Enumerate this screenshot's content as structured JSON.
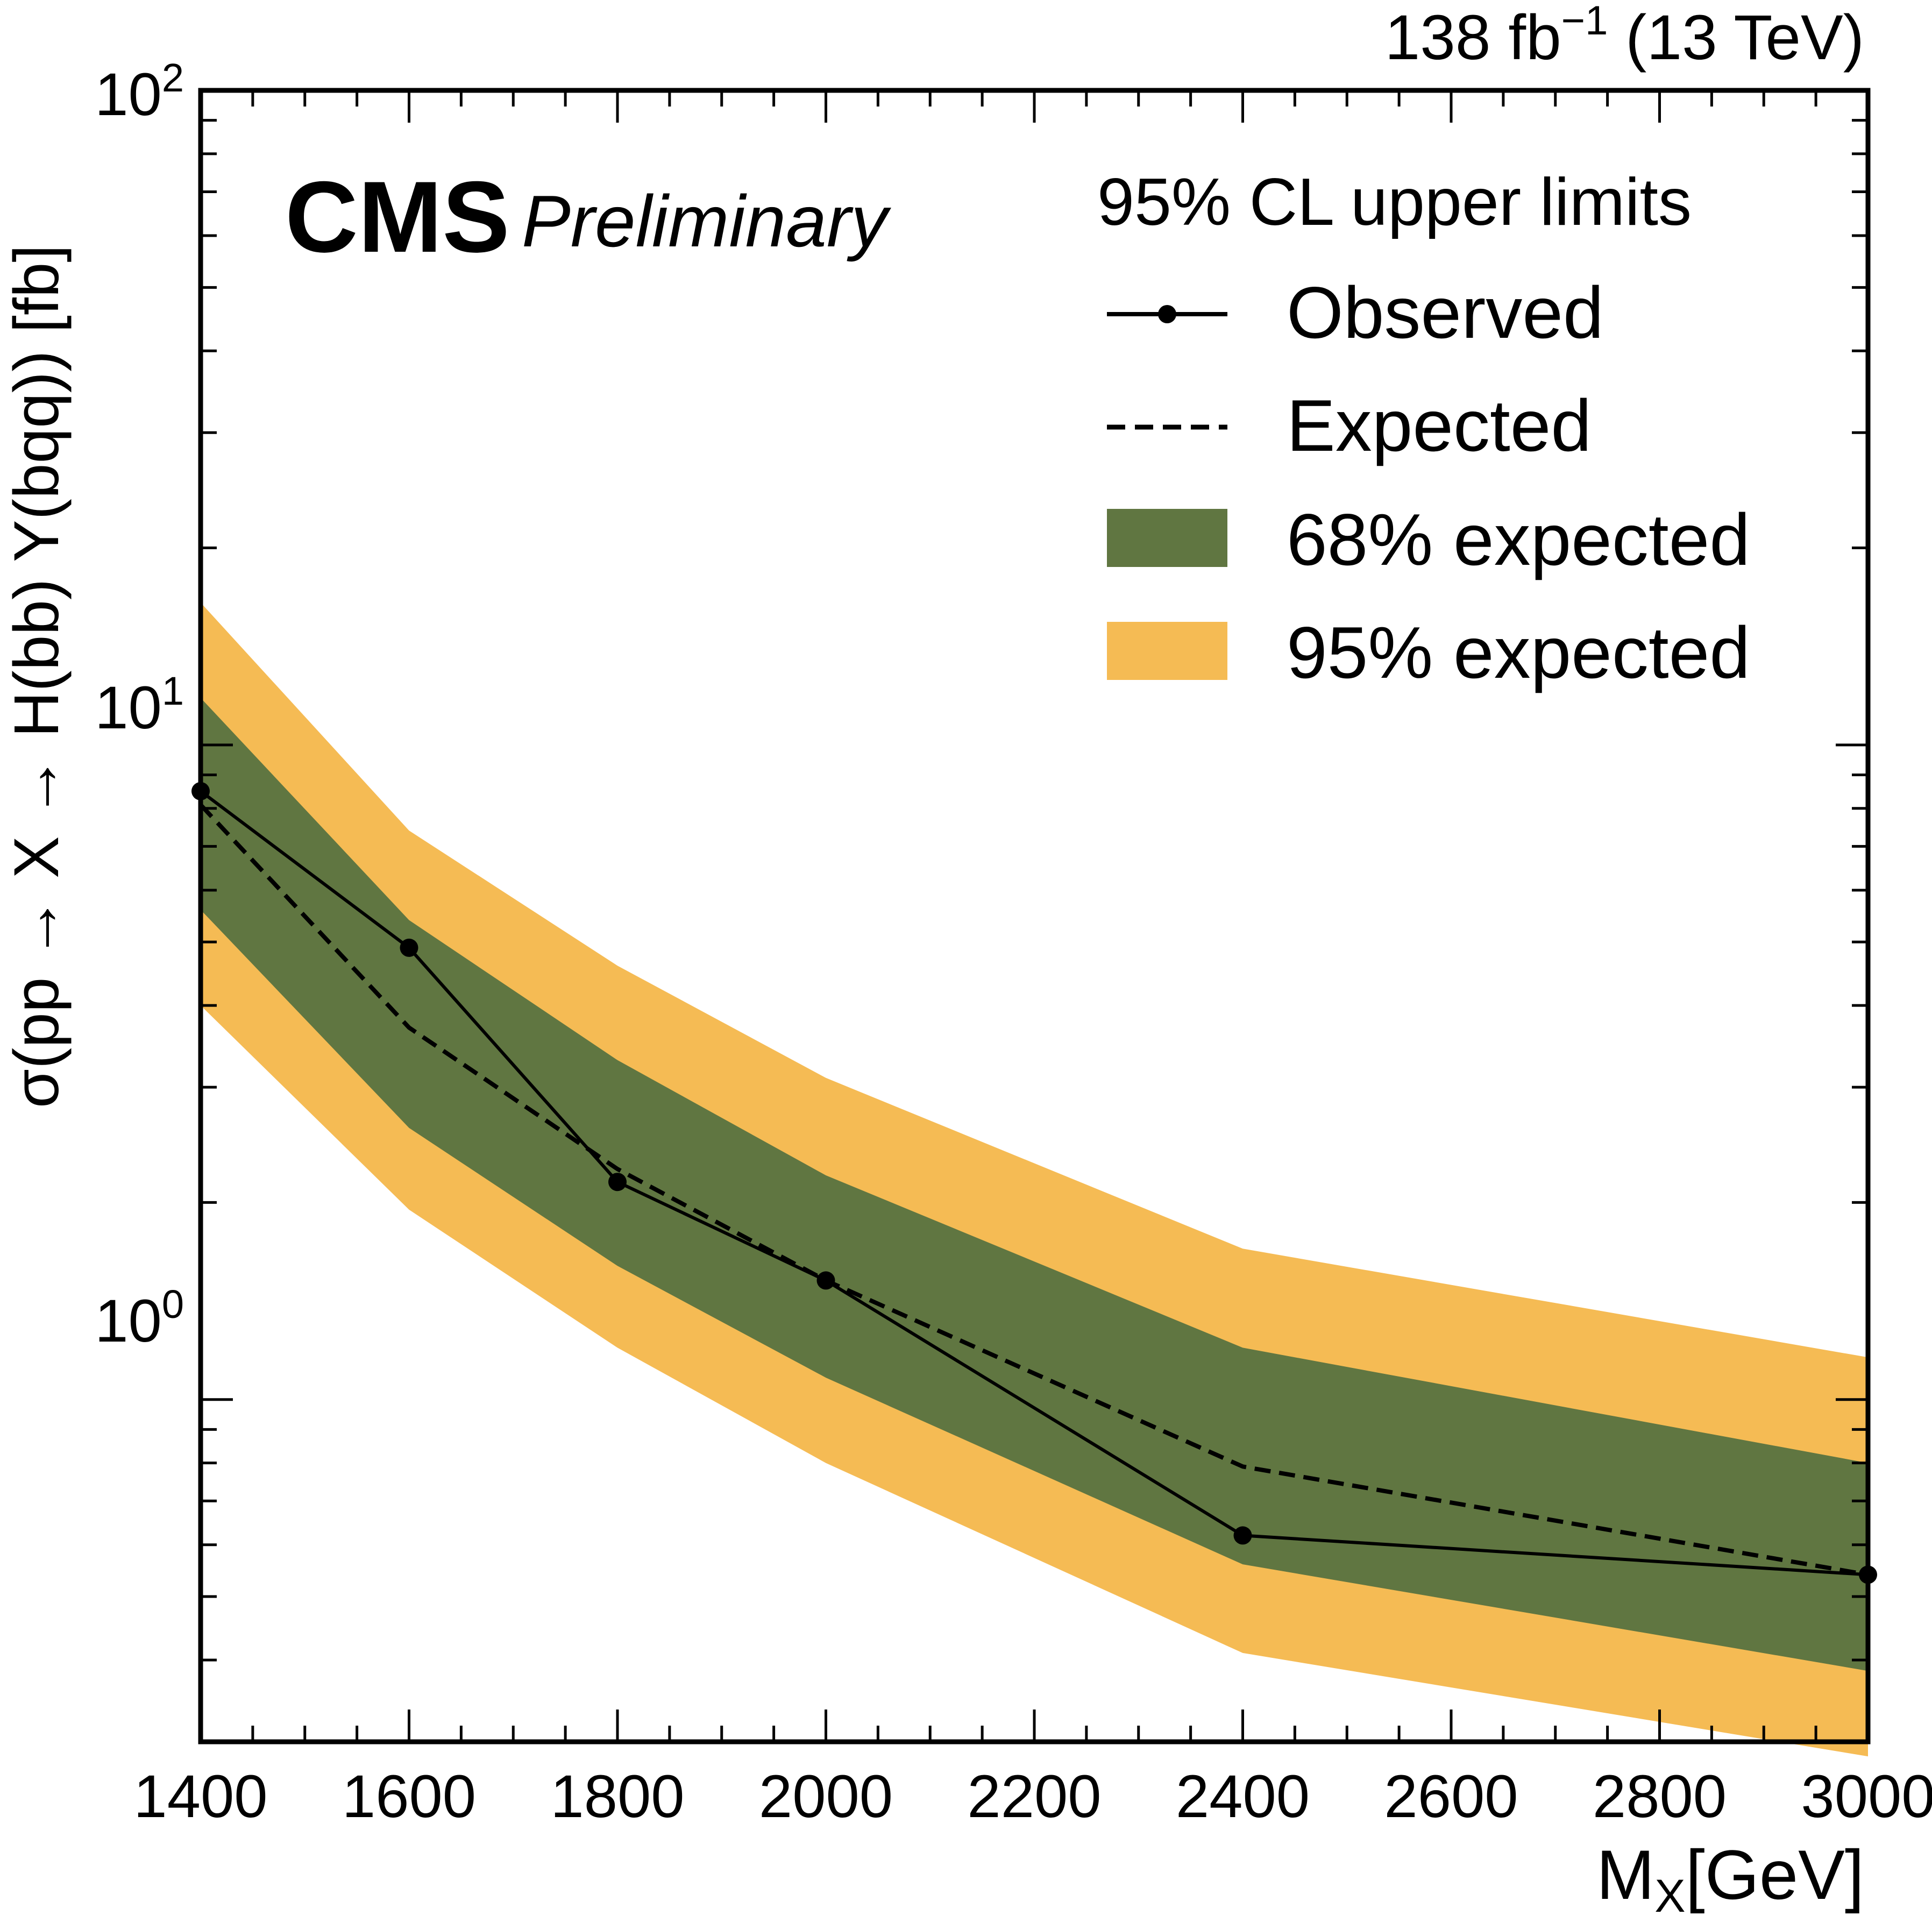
{
  "header": {
    "lumi_main": "138 fb",
    "lumi_sup": "−1",
    "lumi_energy": " (13 TeV)",
    "experiment": "CMS",
    "status": "Preliminary"
  },
  "axes": {
    "ylabel": "σ(pp → X → H(bb) Y(bqq)) [fb]",
    "xlabel_main": "M",
    "xlabel_sub": "X",
    "xlabel_unit": "[GeV]",
    "y_tick_labels": [
      {
        "base": "10",
        "exp": "0"
      },
      {
        "base": "10",
        "exp": "1"
      },
      {
        "base": "10",
        "exp": "2"
      }
    ]
  },
  "legend": {
    "title": "95% CL upper limits",
    "observed": "Observed",
    "expected": "Expected",
    "band68": "68% expected",
    "band95": "95% expected"
  },
  "colors": {
    "band68": "#607641",
    "band95": "#f5bb54",
    "line": "#000000"
  },
  "chart_data": {
    "type": "line",
    "x": [
      1400,
      1600,
      1800,
      2000,
      2400,
      3000
    ],
    "xlim": [
      1400,
      3000
    ],
    "ylim": [
      0.3,
      100
    ],
    "yscale": "log",
    "x_ticks": [
      1400,
      1600,
      1800,
      2000,
      2200,
      2400,
      2600,
      2800,
      3000
    ],
    "y_ticks": [
      1,
      10,
      100
    ],
    "xlabel": "MX[GeV]",
    "ylabel": "σ(pp → X → H(bb) Y(bqq)) [fb]",
    "legend_position": "top-right",
    "grid": false,
    "series": [
      {
        "name": "Observed",
        "values": [
          8.5,
          4.9,
          2.15,
          1.52,
          0.62,
          0.54
        ]
      },
      {
        "name": "Expected",
        "values": [
          8.1,
          3.7,
          2.25,
          1.52,
          0.79,
          0.54
        ]
      },
      {
        "name": "68% expected",
        "lower": [
          5.6,
          2.6,
          1.6,
          1.08,
          0.56,
          0.385
        ],
        "upper": [
          11.8,
          5.4,
          3.3,
          2.2,
          1.2,
          0.8
        ]
      },
      {
        "name": "95% expected",
        "lower": [
          4.0,
          1.95,
          1.2,
          0.8,
          0.41,
          0.285
        ],
        "upper": [
          16.5,
          7.4,
          4.6,
          3.1,
          1.7,
          1.16
        ]
      }
    ]
  }
}
